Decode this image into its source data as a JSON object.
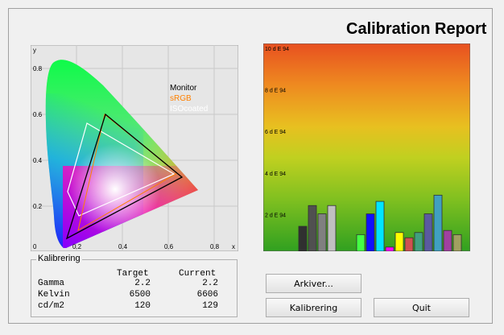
{
  "window": {
    "title": "Calibration Report"
  },
  "cie_chart": {
    "y_label": "y",
    "x_label": "x",
    "y_ticks": [
      "0.8",
      "0.6",
      "0.4",
      "0.2",
      "0"
    ],
    "x_ticks": [
      "0.2",
      "0.4",
      "0.6",
      "0.8"
    ],
    "legend": [
      {
        "label": "Monitor",
        "color": "#000000"
      },
      {
        "label": "sRGB",
        "color": "#ff8000"
      },
      {
        "label": "ISOcoated",
        "color": "#ffffff"
      }
    ]
  },
  "chart_data": {
    "type": "bar",
    "y_tick_labels": [
      "10 d E 94",
      "8 d E 94",
      "6 d E 94",
      "4 d E 94",
      "2 d E 94"
    ],
    "ylim": [
      0,
      10
    ],
    "bars": [
      {
        "value": 1.2,
        "color": "#303030"
      },
      {
        "value": 2.2,
        "color": "#505050"
      },
      {
        "value": 1.8,
        "color": "#808080"
      },
      {
        "value": 2.2,
        "color": "#c0c0c0"
      },
      {
        "value": 0.8,
        "color": "#44ff44"
      },
      {
        "value": 1.8,
        "color": "#1010ff"
      },
      {
        "value": 2.4,
        "color": "#00e5ff"
      },
      {
        "value": 0.2,
        "color": "#ff00ff"
      },
      {
        "value": 0.9,
        "color": "#ffff00"
      },
      {
        "value": 0.65,
        "color": "#d05050"
      },
      {
        "value": 0.9,
        "color": "#40a080"
      },
      {
        "value": 1.8,
        "color": "#5a5aa0"
      },
      {
        "value": 2.7,
        "color": "#40a0c0"
      },
      {
        "value": 1.0,
        "color": "#a040a0"
      },
      {
        "value": 0.8,
        "color": "#a0a060"
      }
    ]
  },
  "calibration": {
    "group_label": "Kalibrering",
    "headers": [
      "Target",
      "Current"
    ],
    "rows": [
      {
        "label": "Gamma",
        "target": "2.2",
        "current": "2.2"
      },
      {
        "label": "Kelvin",
        "target": "6500",
        "current": "6606"
      },
      {
        "label": "cd/m2",
        "target": "120",
        "current": "129"
      }
    ]
  },
  "buttons": {
    "archive": "Arkiver...",
    "calibrate": "Kalibrering",
    "quit": "Quit"
  }
}
